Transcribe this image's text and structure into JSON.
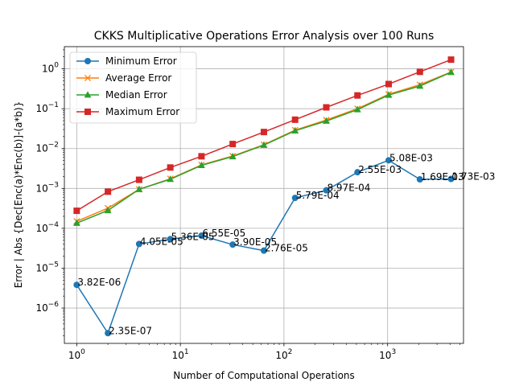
{
  "chart_data": {
    "type": "line",
    "title": "CKKS Multiplicative Operations Error Analysis over 100 Runs",
    "xlabel": "Number of Computational Operations",
    "ylabel": "Error | Abs {Dec[Enc(a)*Enc(b)]-(a*b)}",
    "xscale": "log",
    "yscale": "log",
    "xlim": [
      0.76,
      5400
    ],
    "ylim": [
      1.3e-07,
      3.6
    ],
    "grid": true,
    "legend_position": "top-left",
    "x": [
      1,
      2,
      4,
      8,
      16,
      32,
      64,
      128,
      256,
      512,
      1024,
      2048,
      4096
    ],
    "x_ticks": [
      {
        "value": 1,
        "base": "10",
        "exp": "0"
      },
      {
        "value": 10,
        "base": "10",
        "exp": "1"
      },
      {
        "value": 100,
        "base": "10",
        "exp": "2"
      },
      {
        "value": 1000,
        "base": "10",
        "exp": "3"
      }
    ],
    "y_ticks": [
      {
        "value": 1e-06,
        "base": "10",
        "exp": "−6"
      },
      {
        "value": 1e-05,
        "base": "10",
        "exp": "−5"
      },
      {
        "value": 0.0001,
        "base": "10",
        "exp": "−4"
      },
      {
        "value": 0.001,
        "base": "10",
        "exp": "−3"
      },
      {
        "value": 0.01,
        "base": "10",
        "exp": "−2"
      },
      {
        "value": 0.1,
        "base": "10",
        "exp": "−1"
      },
      {
        "value": 1,
        "base": "10",
        "exp": "0"
      }
    ],
    "series": [
      {
        "name": "Minimum Error",
        "color": "#1f77b4",
        "marker": "circle",
        "values": [
          3.82e-06,
          2.35e-07,
          4.05e-05,
          5.36e-05,
          6.55e-05,
          3.9e-05,
          2.76e-05,
          0.000579,
          0.000897,
          0.00255,
          0.00508,
          0.00169,
          0.00173
        ],
        "labels": [
          "3.82E-06",
          "2.35E-07",
          "4.05E-05",
          "5.36E-05",
          "6.55E-05",
          "3.90E-05",
          "2.76E-05",
          "5.79E-04",
          "8.97E-04",
          "2.55E-03",
          "5.08E-03",
          "1.69E-03",
          "1.73E-03"
        ]
      },
      {
        "name": "Average Error",
        "color": "#ff7f0e",
        "marker": "x",
        "values": [
          0.00015,
          0.00032,
          0.00095,
          0.00175,
          0.0039,
          0.0065,
          0.0125,
          0.029,
          0.052,
          0.1,
          0.23,
          0.4,
          0.83
        ]
      },
      {
        "name": "Median Error",
        "color": "#2ca02c",
        "marker": "triangle",
        "values": [
          0.000135,
          0.00028,
          0.00095,
          0.0017,
          0.0038,
          0.0063,
          0.0122,
          0.028,
          0.049,
          0.095,
          0.22,
          0.37,
          0.82
        ]
      },
      {
        "name": "Maximum Error",
        "color": "#d62728",
        "marker": "square",
        "values": [
          0.000275,
          0.00083,
          0.00165,
          0.00335,
          0.0064,
          0.013,
          0.026,
          0.053,
          0.108,
          0.215,
          0.415,
          0.84,
          1.7
        ]
      }
    ]
  }
}
